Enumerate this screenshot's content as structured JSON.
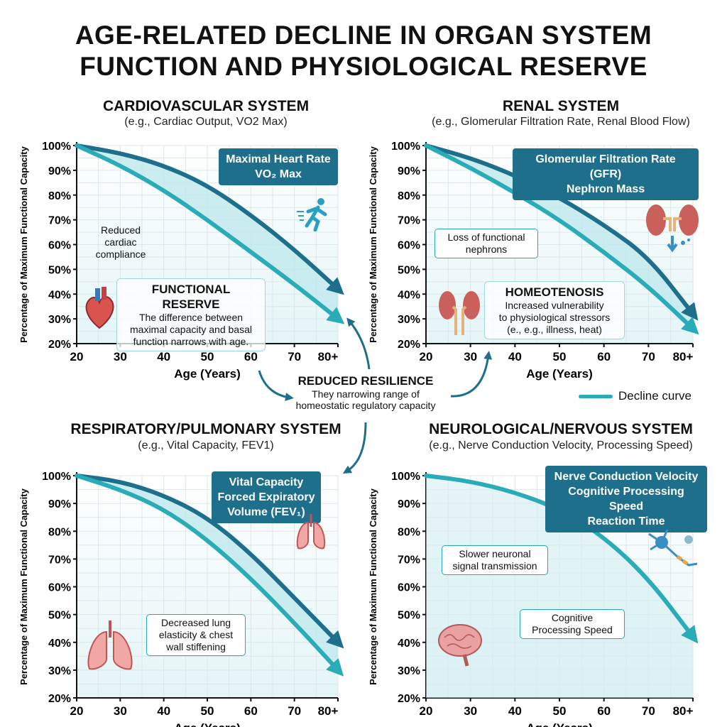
{
  "title_line1": "AGE-RELATED DECLINE IN ORGAN SYSTEM",
  "title_line2": "FUNCTION AND PHYSIOLOGICAL RESERVE",
  "colors": {
    "dark_curve": "#1d6f8c",
    "light_curve": "#2aabb8",
    "fill": "#cdeef1",
    "callout": "#1d6f8c"
  },
  "center": {
    "title": "REDUCED RESILIENCE",
    "line1": "They narrowing range of",
    "line2": "homeostatic regulatory capacity"
  },
  "legend": {
    "label": "Decline curve"
  },
  "chart_data": [
    {
      "type": "line",
      "title": "CARDIOVASCULAR SYSTEM",
      "subtitle": "(e.g., Cardiac Output, VO2 Max)",
      "xlabel": "Age (Years)",
      "ylabel": "Percentage of Maximum Functional Capacity",
      "x_ticks": [
        "20",
        "30",
        "40",
        "50",
        "60",
        "70",
        "80+"
      ],
      "y_ticks": [
        "100%",
        "90%",
        "80%",
        "70%",
        "60%",
        "50%",
        "40%",
        "30%",
        "20%"
      ],
      "ylim": [
        20,
        100
      ],
      "grid": true,
      "x": [
        20,
        30,
        40,
        50,
        60,
        70,
        80
      ],
      "series": [
        {
          "values": [
            100,
            97,
            92,
            84,
            72,
            58,
            42
          ]
        },
        {
          "values": [
            100,
            92,
            82,
            70,
            57,
            44,
            30
          ]
        }
      ],
      "callout_line1": "Maximal Heart Rate",
      "callout_line2": "VO₂ Max",
      "note": "Reduced\ncardiac\ncompliance",
      "reserve_title": "FUNCTIONAL RESERVE",
      "reserve_text": "The difference between\nmaximal capacity and basal\nfunction narrows with age."
    },
    {
      "type": "line",
      "title": "RENAL SYSTEM",
      "subtitle": "(e.g., Glomerular Filtration Rate, Renal Blood Flow)",
      "xlabel": "Age (Years)",
      "ylabel": "Percentage of Maximum Functional Capacity",
      "x_ticks": [
        "20",
        "30",
        "40",
        "50",
        "60",
        "70",
        "80+"
      ],
      "y_ticks": [
        "100%",
        "90%",
        "80%",
        "70%",
        "60%",
        "50%",
        "40%",
        "30%",
        "20%"
      ],
      "ylim": [
        20,
        100
      ],
      "grid": true,
      "x": [
        20,
        30,
        40,
        50,
        60,
        70,
        80
      ],
      "series": [
        {
          "values": [
            100,
            95,
            88,
            79,
            68,
            55,
            32
          ]
        },
        {
          "values": [
            100,
            91,
            81,
            70,
            57,
            43,
            26
          ]
        }
      ],
      "callout_line1": "Glomerular Filtration Rate (GFR)",
      "callout_line2": "Nephron Mass",
      "note": "Loss of functional\nnephrons",
      "reserve_title": "HOMEOTENOSIS",
      "reserve_text": "Increased vulnerability\nto physiological stressors\n(e., e.g., illness, heat)"
    },
    {
      "type": "line",
      "title": "RESPIRATORY/PULMONARY SYSTEM",
      "subtitle": "(e.g., Vital Capacity, FEV1)",
      "xlabel": "Age (Years)",
      "ylabel": "Percentage of Maximum Functional Capacity",
      "x_ticks": [
        "20",
        "30",
        "40",
        "50",
        "60",
        "70",
        "80+"
      ],
      "y_ticks": [
        "100%",
        "90%",
        "80%",
        "70%",
        "60%",
        "50%",
        "40%",
        "30%",
        "20%"
      ],
      "ylim": [
        20,
        100
      ],
      "grid": true,
      "x": [
        20,
        30,
        40,
        50,
        60,
        70,
        80
      ],
      "series": [
        {
          "values": [
            100,
            98,
            93,
            85,
            72,
            56,
            40
          ]
        },
        {
          "values": [
            100,
            95,
            88,
            77,
            63,
            47,
            30
          ]
        }
      ],
      "callout_line1": "Vital Capacity",
      "callout_line2": "Forced Expiratory",
      "callout_line3": "Volume (FEV₁)",
      "note": "Decreased lung\nelasticity & chest\nwall stiffening"
    },
    {
      "type": "line",
      "title": "NEUROLOGICAL/NERVOUS SYSTEM",
      "subtitle": "(e.g., Nerve Conduction Velocity, Processing Speed)",
      "xlabel": "Age (Years)",
      "ylabel": "Percentage of Maximum Functional Capacity",
      "x_ticks": [
        "20",
        "30",
        "40",
        "50",
        "60",
        "70",
        "80+"
      ],
      "y_ticks": [
        "100%",
        "90%",
        "80%",
        "70%",
        "60%",
        "50%",
        "40%",
        "30%",
        "20%"
      ],
      "ylim": [
        20,
        100
      ],
      "grid": true,
      "x": [
        20,
        30,
        40,
        50,
        60,
        70,
        80
      ],
      "series": [
        {
          "values": [
            100,
            98,
            94,
            88,
            78,
            63,
            42
          ]
        }
      ],
      "callout_line1": "Nerve Conduction Velocity",
      "callout_line2": "Cognitive Processing Speed",
      "callout_line3": "Reaction Time",
      "note": "Slower neuronal\nsignal transmission",
      "note2": "Cognitive\nProcessing Speed"
    }
  ]
}
